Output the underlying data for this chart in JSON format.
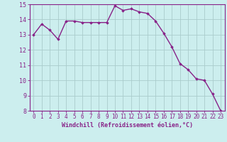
{
  "x": [
    0,
    1,
    2,
    3,
    4,
    5,
    6,
    7,
    8,
    9,
    10,
    11,
    12,
    13,
    14,
    15,
    16,
    17,
    18,
    19,
    20,
    21,
    22,
    23
  ],
  "y": [
    13.0,
    13.7,
    13.3,
    12.7,
    13.9,
    13.9,
    13.8,
    13.8,
    13.8,
    13.8,
    14.9,
    14.6,
    14.7,
    14.5,
    14.4,
    13.9,
    13.1,
    12.2,
    11.1,
    10.7,
    10.1,
    10.0,
    9.1,
    8.0
  ],
  "line_color": "#882288",
  "marker": "D",
  "marker_size": 1.8,
  "bg_color": "#cceeee",
  "grid_color": "#aacccc",
  "xlabel": "Windchill (Refroidissement éolien,°C)",
  "xlabel_color": "#882288",
  "tick_color": "#882288",
  "ylim": [
    8,
    15
  ],
  "xlim_min": -0.5,
  "xlim_max": 23.5,
  "yticks": [
    8,
    9,
    10,
    11,
    12,
    13,
    14,
    15
  ],
  "xticks": [
    0,
    1,
    2,
    3,
    4,
    5,
    6,
    7,
    8,
    9,
    10,
    11,
    12,
    13,
    14,
    15,
    16,
    17,
    18,
    19,
    20,
    21,
    22,
    23
  ],
  "line_width": 1.0,
  "spine_color": "#882288",
  "tick_fontsize": 5.5,
  "xlabel_fontsize": 6.0,
  "ytick_fontsize": 6.0
}
